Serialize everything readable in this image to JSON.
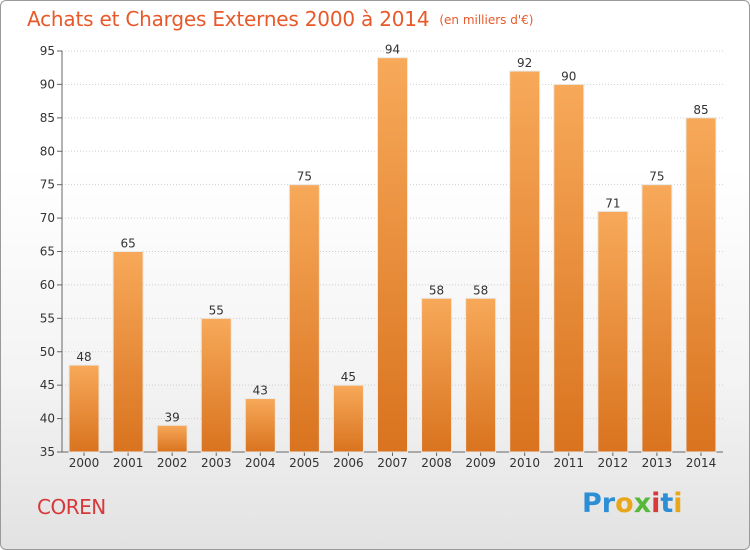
{
  "title": "Achats et Charges Externes 2000 à 2014",
  "unit_note": "(en milliers d'€)",
  "commune": "COREN",
  "logo": {
    "text": "Proxiti",
    "letters": [
      {
        "ch": "P",
        "color": "#2c8fd6"
      },
      {
        "ch": "r",
        "color": "#2c8fd6"
      },
      {
        "ch": "o",
        "color": "#e8a61b"
      },
      {
        "ch": "x",
        "color": "#57b83a"
      },
      {
        "ch": "i",
        "color": "#d8383a"
      },
      {
        "ch": "t",
        "color": "#2c8fd6"
      },
      {
        "ch": "i",
        "color": "#e8a61b"
      }
    ]
  },
  "colors": {
    "bar_light": "#f7a959",
    "bar_dark": "#d9731f",
    "title": "#e8592a",
    "commune": "#d8383a"
  },
  "chart_data": {
    "type": "bar",
    "title": "Achats et Charges Externes 2000 à 2014",
    "subtitle": "(en milliers d'€)",
    "xlabel": "",
    "ylabel": "",
    "categories": [
      "2000",
      "2001",
      "2002",
      "2003",
      "2004",
      "2005",
      "2006",
      "2007",
      "2008",
      "2009",
      "2010",
      "2011",
      "2012",
      "2013",
      "2014"
    ],
    "values": [
      48,
      65,
      39,
      55,
      43,
      75,
      45,
      94,
      58,
      58,
      92,
      90,
      71,
      75,
      85
    ],
    "ylim": [
      35,
      95
    ],
    "yticks": [
      35,
      40,
      45,
      50,
      55,
      60,
      65,
      70,
      75,
      80,
      85,
      90,
      95
    ],
    "grid": "y-dotted",
    "legend": "none"
  }
}
